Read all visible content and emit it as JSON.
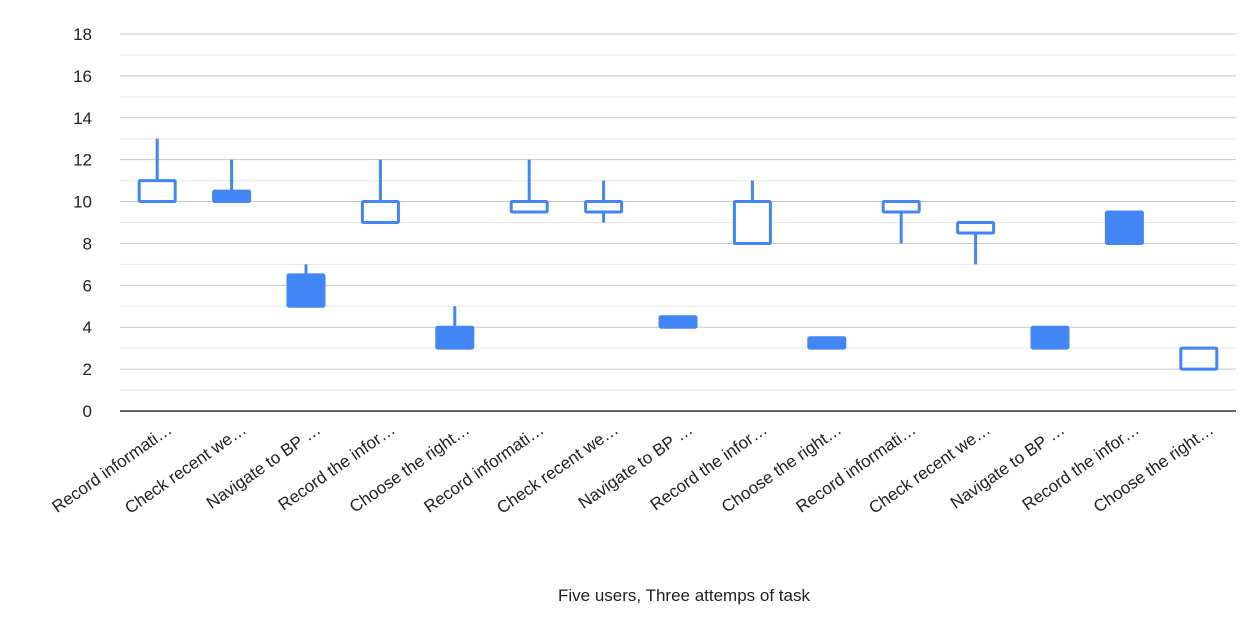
{
  "chart_data": {
    "type": "candlestick",
    "xlabel": "Five users, Three attemps of task",
    "ylabel": "",
    "ylim": [
      0,
      18
    ],
    "yticks": [
      0,
      2,
      4,
      6,
      8,
      10,
      12,
      14,
      16,
      18
    ],
    "grid": true,
    "series_color": "#4285f4",
    "categories": [
      "Record informati…",
      "Check recent we…",
      "Navigate to BP …",
      "Record the infor…",
      "Choose the right…",
      "Record informati…",
      "Check recent we…",
      "Navigate to BP …",
      "Record the infor…",
      "Choose the right…",
      "Record informati…",
      "Check recent we…",
      "Navigate to BP …",
      "Record the infor…",
      "Choose the right…"
    ],
    "candles": [
      {
        "low": 10,
        "open": 10,
        "close": 11,
        "high": 13
      },
      {
        "low": 10,
        "open": 10.5,
        "close": 10,
        "high": 12
      },
      {
        "low": 5,
        "open": 6.5,
        "close": 5,
        "high": 7
      },
      {
        "low": 9,
        "open": 9,
        "close": 10,
        "high": 12
      },
      {
        "low": 3,
        "open": 4,
        "close": 3,
        "high": 5
      },
      {
        "low": 9.5,
        "open": 9.5,
        "close": 10,
        "high": 12
      },
      {
        "low": 9,
        "open": 9.5,
        "close": 10,
        "high": 11
      },
      {
        "low": 4,
        "open": 4.5,
        "close": 4,
        "high": 4.5
      },
      {
        "low": 8,
        "open": 8,
        "close": 10,
        "high": 11
      },
      {
        "low": 3,
        "open": 3.5,
        "close": 3,
        "high": 3.5
      },
      {
        "low": 8,
        "open": 9.5,
        "close": 10,
        "high": 10
      },
      {
        "low": 7,
        "open": 8.5,
        "close": 9,
        "high": 9
      },
      {
        "low": 3,
        "open": 4,
        "close": 3,
        "high": 4
      },
      {
        "low": 8,
        "open": 9.5,
        "close": 8,
        "high": 9.5
      },
      {
        "low": 2,
        "open": 2,
        "close": 3,
        "high": 3
      }
    ]
  }
}
